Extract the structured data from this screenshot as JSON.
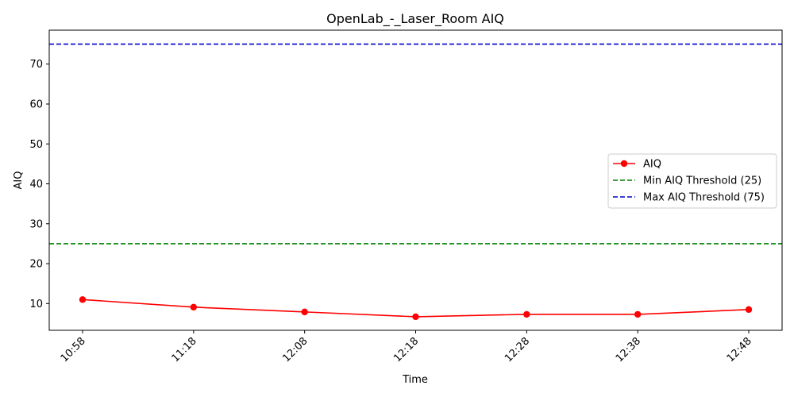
{
  "chart_data": {
    "type": "line",
    "title": "OpenLab_-_Laser_Room AIQ",
    "xlabel": "Time",
    "ylabel": "AIQ",
    "categories": [
      "10:58",
      "11:18",
      "12:08",
      "12:18",
      "12:28",
      "12:38",
      "12:48"
    ],
    "series": [
      {
        "name": "AIQ",
        "values": [
          11.0,
          9.1,
          7.9,
          6.7,
          7.3,
          7.3,
          8.5
        ],
        "color": "#ff0000",
        "marker": "circle"
      }
    ],
    "thresholds": [
      {
        "name": "Min AIQ Threshold (25)",
        "value": 25,
        "color": "#008000",
        "style": "dashed"
      },
      {
        "name": "Max AIQ Threshold (75)",
        "value": 75,
        "color": "#0000cc",
        "style": "dashed"
      }
    ],
    "ylim": [
      3.3,
      78.5
    ],
    "yticks": [
      10,
      20,
      30,
      40,
      50,
      60,
      70
    ],
    "grid": false,
    "legend_position": "center-right"
  }
}
